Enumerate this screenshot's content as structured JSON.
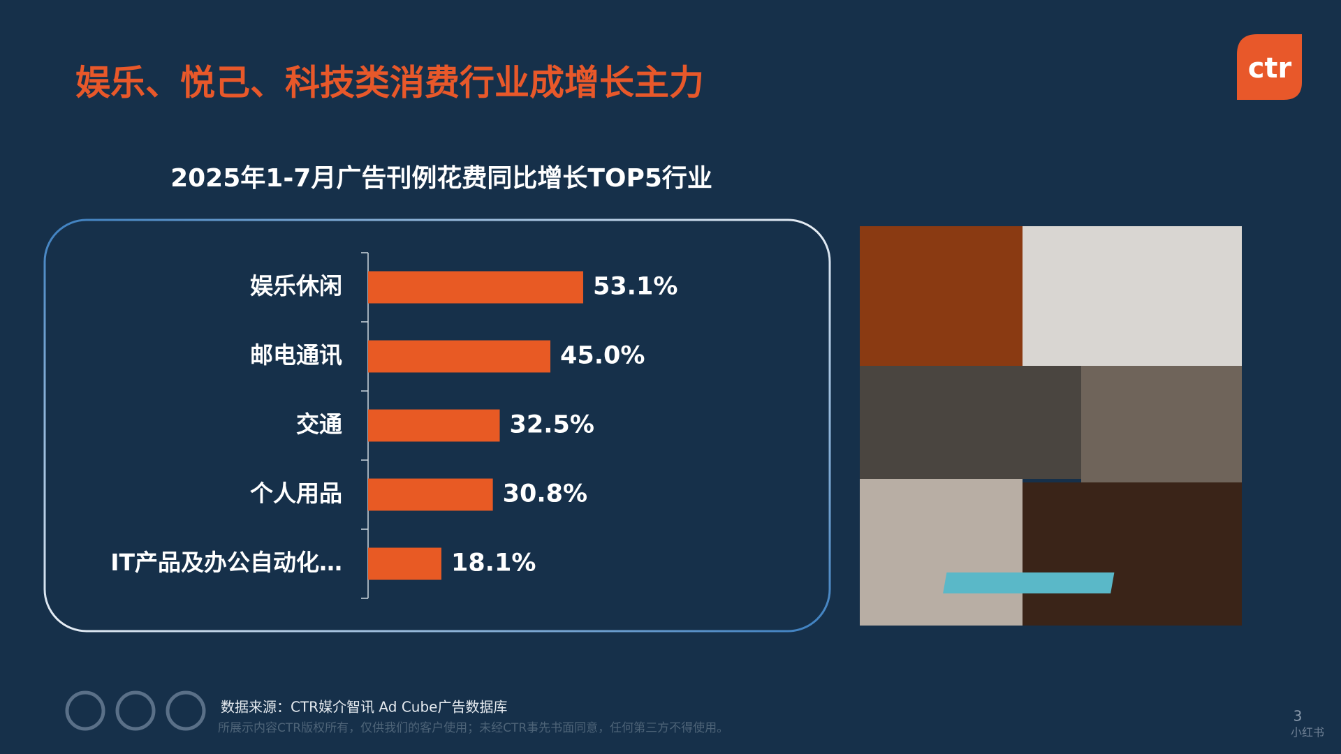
{
  "header": {
    "title": "娱乐、悦己、科技类消费行业成增长主力",
    "logo": "ctr"
  },
  "chart_data": {
    "type": "hbar",
    "title": "2025年1-7月广告刊例花费同比增长TOP5行业",
    "categories": [
      "娱乐休闲",
      "邮电通讯",
      "交通",
      "个人用品",
      "IT产品及办公自动化…"
    ],
    "values": [
      53.1,
      45.0,
      32.5,
      30.8,
      18.1
    ],
    "value_labels": [
      "53.1%",
      "45.0%",
      "32.5%",
      "30.8%",
      "18.1%"
    ],
    "color": "#e85a24"
  },
  "footer": {
    "source": "数据来源：CTR媒介智讯 Ad Cube广告数据库",
    "copyright": "所展示内容CTR版权所有，仅供我们的客户使用；未经CTR事先书面同意，任何第三方不得使用。",
    "page": "3",
    "watermark": "小红书"
  }
}
